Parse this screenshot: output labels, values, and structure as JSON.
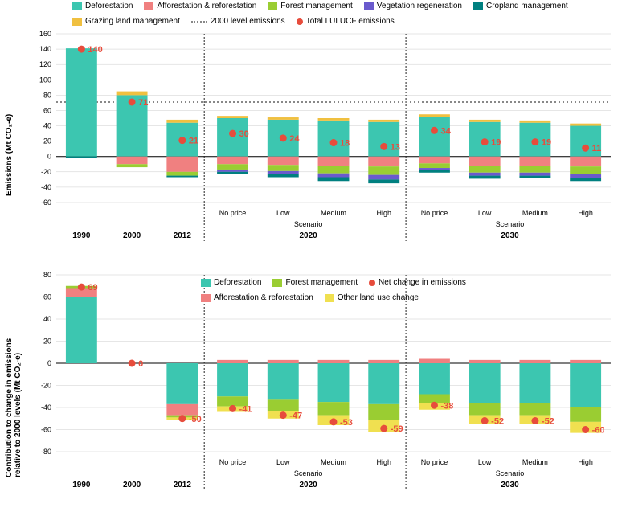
{
  "colors": {
    "deforestation": "#3cc6b0",
    "afforestation": "#f08080",
    "forest_mgmt": "#9acd32",
    "vegetation": "#6a5acd",
    "cropland": "#008080",
    "grazing": "#f0c040",
    "other_lu": "#f0e050",
    "ref_line": "#888888",
    "total_dot": "#e74c3c",
    "grid": "#cccccc",
    "text": "#000000"
  },
  "top_legend": [
    {
      "key": "deforestation",
      "label": "Deforestation",
      "type": "swatch"
    },
    {
      "key": "afforestation",
      "label": "Afforestation & reforestation",
      "type": "swatch"
    },
    {
      "key": "forest_mgmt",
      "label": "Forest management",
      "type": "swatch"
    },
    {
      "key": "vegetation",
      "label": "Vegetation regeneration",
      "type": "swatch"
    },
    {
      "key": "cropland",
      "label": "Cropland management",
      "type": "swatch"
    },
    {
      "key": "grazing",
      "label": "Grazing land management",
      "type": "swatch"
    },
    {
      "key": "ref",
      "label": "2000 level emissions",
      "type": "dots"
    },
    {
      "key": "total_dot",
      "label": "Total LULUCF emissions",
      "type": "dot"
    }
  ],
  "bottom_legend": [
    {
      "key": "deforestation",
      "label": "Deforestation",
      "type": "swatch"
    },
    {
      "key": "forest_mgmt",
      "label": "Forest management",
      "type": "swatch"
    },
    {
      "key": "total_dot",
      "label": "Net change in emissions",
      "type": "dot"
    },
    {
      "key": "afforestation",
      "label": "Afforestation & reforestation",
      "type": "swatch"
    },
    {
      "key": "other_lu",
      "label": "Other land use change",
      "type": "swatch"
    }
  ],
  "chart1": {
    "y_title": "Emissions (Mt CO₂-e)",
    "ylim": [
      -60,
      160
    ],
    "yticks": [
      -60,
      -40,
      -20,
      0,
      20,
      40,
      60,
      80,
      100,
      120,
      140,
      160
    ],
    "ref": 71,
    "years": [
      "1990",
      "2000",
      "2012"
    ],
    "scenarios": [
      "No price",
      "Low",
      "Medium",
      "High"
    ],
    "scen_years": [
      "2020",
      "2030"
    ],
    "bars": [
      {
        "x": 0,
        "label": "1990",
        "segs": [
          {
            "c": "deforestation",
            "v": 141
          }
        ],
        "negs": [
          {
            "c": "cropland",
            "v": -2
          }
        ],
        "total": 140
      },
      {
        "x": 1,
        "label": "2000",
        "segs": [
          {
            "c": "deforestation",
            "v": 80
          },
          {
            "c": "grazing",
            "v": 5
          }
        ],
        "negs": [
          {
            "c": "afforestation",
            "v": -10
          },
          {
            "c": "forest_mgmt",
            "v": -4
          }
        ],
        "total": 71
      },
      {
        "x": 2,
        "label": "2012",
        "segs": [
          {
            "c": "deforestation",
            "v": 44
          },
          {
            "c": "grazing",
            "v": 4
          }
        ],
        "negs": [
          {
            "c": "afforestation",
            "v": -20
          },
          {
            "c": "forest_mgmt",
            "v": -5
          },
          {
            "c": "cropland",
            "v": -2
          }
        ],
        "total": 21
      },
      {
        "x": 3,
        "label": "No price",
        "segs": [
          {
            "c": "deforestation",
            "v": 50
          },
          {
            "c": "grazing",
            "v": 3
          }
        ],
        "negs": [
          {
            "c": "afforestation",
            "v": -10
          },
          {
            "c": "forest_mgmt",
            "v": -7
          },
          {
            "c": "vegetation",
            "v": -3
          },
          {
            "c": "cropland",
            "v": -3
          }
        ],
        "total": 30
      },
      {
        "x": 4,
        "label": "Low",
        "segs": [
          {
            "c": "deforestation",
            "v": 48
          },
          {
            "c": "grazing",
            "v": 3
          }
        ],
        "negs": [
          {
            "c": "afforestation",
            "v": -11
          },
          {
            "c": "forest_mgmt",
            "v": -8
          },
          {
            "c": "vegetation",
            "v": -4
          },
          {
            "c": "cropland",
            "v": -4
          }
        ],
        "total": 24
      },
      {
        "x": 5,
        "label": "Medium",
        "segs": [
          {
            "c": "deforestation",
            "v": 47
          },
          {
            "c": "grazing",
            "v": 3
          }
        ],
        "negs": [
          {
            "c": "afforestation",
            "v": -12
          },
          {
            "c": "forest_mgmt",
            "v": -10
          },
          {
            "c": "vegetation",
            "v": -5
          },
          {
            "c": "cropland",
            "v": -5
          }
        ],
        "total": 18
      },
      {
        "x": 6,
        "label": "High",
        "segs": [
          {
            "c": "deforestation",
            "v": 45
          },
          {
            "c": "grazing",
            "v": 3
          }
        ],
        "negs": [
          {
            "c": "afforestation",
            "v": -13
          },
          {
            "c": "forest_mgmt",
            "v": -11
          },
          {
            "c": "vegetation",
            "v": -6
          },
          {
            "c": "cropland",
            "v": -5
          }
        ],
        "total": 13
      },
      {
        "x": 7,
        "label": "No price",
        "segs": [
          {
            "c": "deforestation",
            "v": 52
          },
          {
            "c": "grazing",
            "v": 3
          }
        ],
        "negs": [
          {
            "c": "afforestation",
            "v": -9
          },
          {
            "c": "forest_mgmt",
            "v": -6
          },
          {
            "c": "vegetation",
            "v": -3
          },
          {
            "c": "cropland",
            "v": -3
          }
        ],
        "total": 34
      },
      {
        "x": 8,
        "label": "Low",
        "segs": [
          {
            "c": "deforestation",
            "v": 45
          },
          {
            "c": "grazing",
            "v": 3
          }
        ],
        "negs": [
          {
            "c": "afforestation",
            "v": -12
          },
          {
            "c": "forest_mgmt",
            "v": -9
          },
          {
            "c": "vegetation",
            "v": -4
          },
          {
            "c": "cropland",
            "v": -4
          }
        ],
        "total": 19
      },
      {
        "x": 9,
        "label": "Medium",
        "segs": [
          {
            "c": "deforestation",
            "v": 44
          },
          {
            "c": "grazing",
            "v": 3
          }
        ],
        "negs": [
          {
            "c": "afforestation",
            "v": -12
          },
          {
            "c": "forest_mgmt",
            "v": -9
          },
          {
            "c": "vegetation",
            "v": -4
          },
          {
            "c": "cropland",
            "v": -3
          }
        ],
        "total": 19
      },
      {
        "x": 10,
        "label": "High",
        "segs": [
          {
            "c": "deforestation",
            "v": 40
          },
          {
            "c": "grazing",
            "v": 3
          }
        ],
        "negs": [
          {
            "c": "afforestation",
            "v": -13
          },
          {
            "c": "forest_mgmt",
            "v": -10
          },
          {
            "c": "vegetation",
            "v": -5
          },
          {
            "c": "cropland",
            "v": -4
          }
        ],
        "total": 11
      }
    ]
  },
  "chart2": {
    "y_title": "Contribution to change in emissions\nrelative to 2000 levels (Mt CO₂-e)",
    "ylim": [
      -80,
      80
    ],
    "yticks": [
      -80,
      -60,
      -40,
      -20,
      0,
      20,
      40,
      60,
      80
    ],
    "bars": [
      {
        "x": 0,
        "label": "1990",
        "segs": [
          {
            "c": "deforestation",
            "v": 60
          },
          {
            "c": "afforestation",
            "v": 8
          },
          {
            "c": "forest_mgmt",
            "v": 2
          }
        ],
        "negs": [],
        "total": 69
      },
      {
        "x": 1,
        "label": "2000",
        "segs": [],
        "negs": [],
        "total": 0
      },
      {
        "x": 2,
        "label": "2012",
        "segs": [],
        "negs": [
          {
            "c": "deforestation",
            "v": -37
          },
          {
            "c": "afforestation",
            "v": -10
          },
          {
            "c": "forest_mgmt",
            "v": -2
          },
          {
            "c": "other_lu",
            "v": -2
          }
        ],
        "total": -50
      },
      {
        "x": 3,
        "label": "No price",
        "segs": [
          {
            "c": "afforestation",
            "v": 3
          }
        ],
        "negs": [
          {
            "c": "deforestation",
            "v": -30
          },
          {
            "c": "forest_mgmt",
            "v": -9
          },
          {
            "c": "other_lu",
            "v": -5
          }
        ],
        "total": -41
      },
      {
        "x": 4,
        "label": "Low",
        "segs": [
          {
            "c": "afforestation",
            "v": 3
          }
        ],
        "negs": [
          {
            "c": "deforestation",
            "v": -33
          },
          {
            "c": "forest_mgmt",
            "v": -10
          },
          {
            "c": "other_lu",
            "v": -7
          }
        ],
        "total": -47
      },
      {
        "x": 5,
        "label": "Medium",
        "segs": [
          {
            "c": "afforestation",
            "v": 3
          }
        ],
        "negs": [
          {
            "c": "deforestation",
            "v": -35
          },
          {
            "c": "forest_mgmt",
            "v": -12
          },
          {
            "c": "other_lu",
            "v": -9
          }
        ],
        "total": -53
      },
      {
        "x": 6,
        "label": "High",
        "segs": [
          {
            "c": "afforestation",
            "v": 3
          }
        ],
        "negs": [
          {
            "c": "deforestation",
            "v": -37
          },
          {
            "c": "forest_mgmt",
            "v": -14
          },
          {
            "c": "other_lu",
            "v": -11
          }
        ],
        "total": -59
      },
      {
        "x": 7,
        "label": "No price",
        "segs": [
          {
            "c": "afforestation",
            "v": 4
          }
        ],
        "negs": [
          {
            "c": "deforestation",
            "v": -28
          },
          {
            "c": "forest_mgmt",
            "v": -8
          },
          {
            "c": "other_lu",
            "v": -6
          }
        ],
        "total": -38
      },
      {
        "x": 8,
        "label": "Low",
        "segs": [
          {
            "c": "afforestation",
            "v": 3
          }
        ],
        "negs": [
          {
            "c": "deforestation",
            "v": -36
          },
          {
            "c": "forest_mgmt",
            "v": -11
          },
          {
            "c": "other_lu",
            "v": -8
          }
        ],
        "total": -52
      },
      {
        "x": 9,
        "label": "Medium",
        "segs": [
          {
            "c": "afforestation",
            "v": 3
          }
        ],
        "negs": [
          {
            "c": "deforestation",
            "v": -36
          },
          {
            "c": "forest_mgmt",
            "v": -11
          },
          {
            "c": "other_lu",
            "v": -8
          }
        ],
        "total": -52
      },
      {
        "x": 10,
        "label": "High",
        "segs": [
          {
            "c": "afforestation",
            "v": 3
          }
        ],
        "negs": [
          {
            "c": "deforestation",
            "v": -40
          },
          {
            "c": "forest_mgmt",
            "v": -13
          },
          {
            "c": "other_lu",
            "v": -10
          }
        ],
        "total": -60
      }
    ]
  },
  "scenario_word": "Scenario"
}
